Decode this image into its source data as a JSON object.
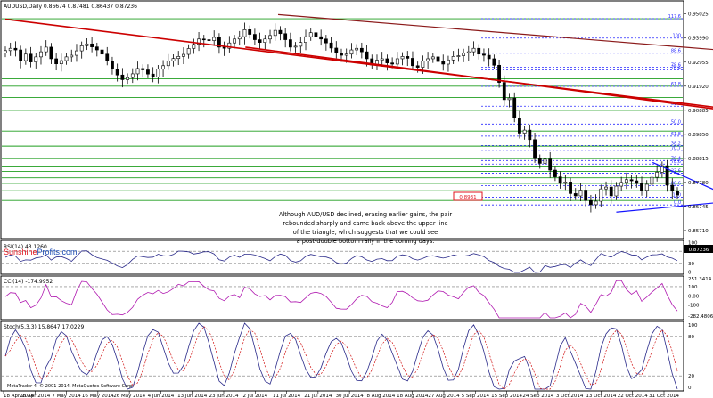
{
  "chart_data": [
    {
      "type": "candlestick",
      "title": "AUDUSD,Daily  0.86674 0.87481 0.86437 0.87236",
      "current_price": "0.87236",
      "y_ticks": [
        "0.95025",
        "0.93990",
        "0.92955",
        "0.91920",
        "0.90885",
        "0.89850",
        "0.88815",
        "0.87780",
        "0.86745",
        "0.85710"
      ],
      "x_ticks": [
        "18 Apr 2014",
        "28 Apr 2014",
        "7 May 2014",
        "16 May 2014",
        "26 May 2014",
        "4 Jun 2014",
        "13 Jun 2014",
        "23 Jun 2014",
        "2 Jul 2014",
        "11 Jul 2014",
        "21 Jul 2014",
        "30 Jul 2014",
        "8 Aug 2014",
        "18 Aug 2014",
        "27 Aug 2014",
        "5 Sep 2014",
        "15 Sep 2014",
        "24 Sep 2014",
        "3 Oct 2014",
        "13 Oct 2014",
        "22 Oct 2014",
        "31 Oct 2014"
      ],
      "y_range": [
        0.854,
        0.9555
      ],
      "support_resistance_levels": [
        0.9482,
        0.9224,
        0.9192,
        0.9143,
        0.9088,
        0.8999,
        0.8934,
        0.888,
        0.8848,
        0.8825,
        0.8798,
        0.8774,
        0.8742,
        0.8707,
        0.87
      ],
      "fibonacci_levels": [
        {
          "label": "117.6",
          "value": 0.9482
        },
        {
          "label": "100",
          "value": 0.9399
        },
        {
          "label": "88.6",
          "value": 0.9334
        },
        {
          "label": "78.6",
          "value": 0.9274
        },
        {
          "label": "76.4",
          "value": 0.9262
        },
        {
          "label": "61.8",
          "value": 0.9191
        },
        {
          "label": "61.8",
          "value": 0.9106
        },
        {
          "label": "50.0",
          "value": 0.9029
        },
        {
          "label": "61.8",
          "value": 0.8977
        },
        {
          "label": "38.2",
          "value": 0.8937
        },
        {
          "label": "70.7",
          "value": 0.8916
        },
        {
          "label": "76.4",
          "value": 0.8872
        },
        {
          "label": "78.6",
          "value": 0.8857
        },
        {
          "label": "23.6",
          "value": 0.8818
        },
        {
          "label": "88.6",
          "value": 0.8764
        },
        {
          "label": "100",
          "value": 0.8714
        },
        {
          "label": "0.0",
          "value": 0.8681
        }
      ],
      "highlight_level": "0.8931",
      "annotation": "Although AUD/USD declined, erasing earlier gains, the pair rebounded sharply and came back above the upper line of the triangle, which suggests that we could see a post-double bottom rally in the coming days.",
      "annotation_lines": [
        "Although AUD/USD declined, erasing earlier gains, the pair",
        "rebounded sharply and came back above the upper line",
        "of the triangle, which suggests that we could see",
        "a post-double bottom rally in the coming days."
      ],
      "trend_lines": [
        {
          "name": "long declining resistance",
          "color": "#cc0000",
          "from": [
            "2014-04-18",
            0.948
          ],
          "to": [
            "2014-11-04",
            0.9092
          ]
        },
        {
          "name": "parallel lower red line",
          "color": "#cc0000",
          "from": [
            "2014-06-23",
            0.936
          ],
          "to": [
            "2014-11-04",
            0.9084
          ]
        },
        {
          "name": "upper brown channel line",
          "color": "#8b1a1a",
          "from": [
            "2014-07-02",
            0.95
          ],
          "to": [
            "2014-11-04",
            0.9343
          ]
        },
        {
          "name": "triangle upper line",
          "color": "#1414ff",
          "from": [
            "2014-10-13",
            0.8864
          ],
          "to": [
            "2014-11-04",
            0.8711
          ]
        },
        {
          "name": "triangle lower line",
          "color": "#1414ff",
          "from": [
            "2014-10-03",
            0.865
          ],
          "to": [
            "2014-11-04",
            0.8697
          ]
        }
      ],
      "ohlc_close": [
        0.9345,
        0.9355,
        0.9348,
        0.9302,
        0.933,
        0.9296,
        0.9318,
        0.934,
        0.936,
        0.931,
        0.9288,
        0.9302,
        0.9318,
        0.9325,
        0.9344,
        0.9366,
        0.9374,
        0.9361,
        0.9348,
        0.933,
        0.93,
        0.9265,
        0.924,
        0.922,
        0.9229,
        0.9245,
        0.9268,
        0.9262,
        0.9244,
        0.9232,
        0.9265,
        0.928,
        0.93,
        0.9311,
        0.932,
        0.9329,
        0.9354,
        0.9372,
        0.9395,
        0.9392,
        0.9388,
        0.9402,
        0.936,
        0.9355,
        0.9378,
        0.9395,
        0.9405,
        0.9435,
        0.9415,
        0.9392,
        0.938,
        0.9395,
        0.941,
        0.9432,
        0.9418,
        0.9392,
        0.936,
        0.9364,
        0.938,
        0.9405,
        0.9422,
        0.9405,
        0.9395,
        0.9378,
        0.9356,
        0.9335,
        0.9325,
        0.933,
        0.9348,
        0.9355,
        0.934,
        0.931,
        0.9283,
        0.9304,
        0.931,
        0.9292,
        0.9287,
        0.931,
        0.932,
        0.9312,
        0.928,
        0.9273,
        0.93,
        0.931,
        0.9318,
        0.9298,
        0.9287,
        0.9305,
        0.932,
        0.9323,
        0.9335,
        0.934,
        0.9355,
        0.933,
        0.9325,
        0.931,
        0.9282,
        0.9208,
        0.9134,
        0.9141,
        0.9055,
        0.899,
        0.9003,
        0.8962,
        0.888,
        0.886,
        0.8878,
        0.8831,
        0.8802,
        0.8774,
        0.878,
        0.873,
        0.872,
        0.8745,
        0.87,
        0.8682,
        0.8697,
        0.875,
        0.8758,
        0.872,
        0.8762,
        0.8778,
        0.879,
        0.8785,
        0.8773,
        0.8744,
        0.877,
        0.88,
        0.8822,
        0.885,
        0.8766,
        0.874,
        0.8724
      ],
      "indicators": [
        {
          "name": "RSI(14)",
          "value": "43.1260",
          "levels": [
            "70",
            "30"
          ],
          "y_range": [
            0,
            100
          ]
        },
        {
          "name": "CCI(14)",
          "value": "-174.9952",
          "levels": [
            "100",
            "-100"
          ],
          "y_ticks": [
            "251.3414",
            "0.00",
            "-282.4806"
          ]
        },
        {
          "name": "Stoch(5,3,3)",
          "value": "15.8647 17.0229",
          "levels": [
            "80",
            "20"
          ],
          "y_range": [
            0,
            100
          ]
        }
      ]
    }
  ],
  "labels": {
    "title": "AUDUSD,Daily  0.86674 0.87481 0.86437 0.87236",
    "rsi": "RSI(14) 43.1260",
    "cci": "CCI(14) -174.9952",
    "stoch": "Stoch(5,3,3) 15.8647 17.0229",
    "logo_a": "Sunshine",
    "logo_b": "Profits.com",
    "watermark": "MetaTrader 4, © 2001-2014, MetaQuotes Software Corp.",
    "rsi_levels": [
      "100",
      "70",
      "30",
      "0"
    ],
    "cci_levels": [
      "251.3414",
      "100",
      "0.00",
      "-100",
      "-282.4806"
    ],
    "stoch_levels": [
      "100",
      "80",
      "20",
      "0"
    ]
  },
  "colors": {
    "candle_up": "#ffffff",
    "candle_down": "#000000",
    "grid_green": "#1e9e1e",
    "fib_blue": "#2a2aff",
    "trend_red": "#cc0000",
    "triangle_blue": "#1414ff",
    "oscillator": "#2a2a8a",
    "cci": "#b01ab0",
    "stoch_signal": "#d01010",
    "logo_red": "#e0141e",
    "logo_blue": "#1a4ab4"
  }
}
